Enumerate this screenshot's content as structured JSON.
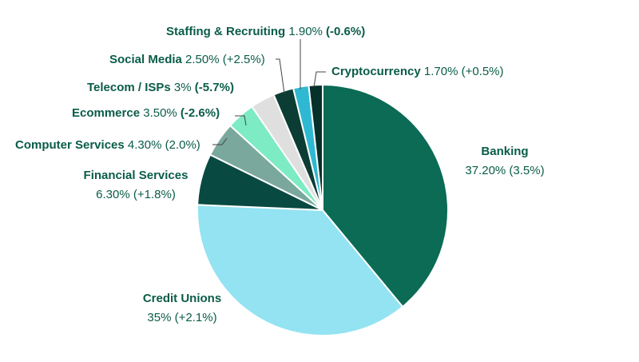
{
  "chart_data": {
    "type": "pie",
    "title": "",
    "start_angle_deg": 0,
    "direction": "clockwise",
    "slices": [
      {
        "name": "Banking",
        "value": 37.2,
        "value_label": "37.20%",
        "change_label": "(3.5%)",
        "change_dir": "up",
        "color": "#0b6b55"
      },
      {
        "name": "Credit Unions",
        "value": 35.0,
        "value_label": "35%",
        "change_label": "(+2.1%)",
        "change_dir": "up",
        "color": "#93e3f2"
      },
      {
        "name": "Financial Services",
        "value": 6.3,
        "value_label": "6.30%",
        "change_label": "(+1.8%)",
        "change_dir": "up",
        "color": "#084a42"
      },
      {
        "name": "Computer Services",
        "value": 4.3,
        "value_label": "4.30%",
        "change_label": "(2.0%)",
        "change_dir": "up",
        "color": "#7aa89d"
      },
      {
        "name": "Ecommerce",
        "value": 3.5,
        "value_label": "3.50%",
        "change_label": "(-2.6%)",
        "change_dir": "down",
        "color": "#7debc3"
      },
      {
        "name": "Telecom / ISPs",
        "value": 3.0,
        "value_label": "3%",
        "change_label": "(-5.7%)",
        "change_dir": "down",
        "color": "#dfdfdf"
      },
      {
        "name": "Social Media",
        "value": 2.5,
        "value_label": "2.50%",
        "change_label": "(+2.5%)",
        "change_dir": "up",
        "color": "#0c3d35"
      },
      {
        "name": "Staffing & Recruiting",
        "value": 1.9,
        "value_label": "1.90%",
        "change_label": "(-0.6%)",
        "change_dir": "down",
        "color": "#2fb8d2"
      },
      {
        "name": "Cryptocurrency",
        "value": 1.7,
        "value_label": "1.70%",
        "change_label": "(+0.5%)",
        "change_dir": "up",
        "color": "#06302a"
      }
    ],
    "colors": {
      "name_text": "#0a5c48",
      "up": "#27a844",
      "down": "#d0212b",
      "leader": "#444444"
    }
  }
}
